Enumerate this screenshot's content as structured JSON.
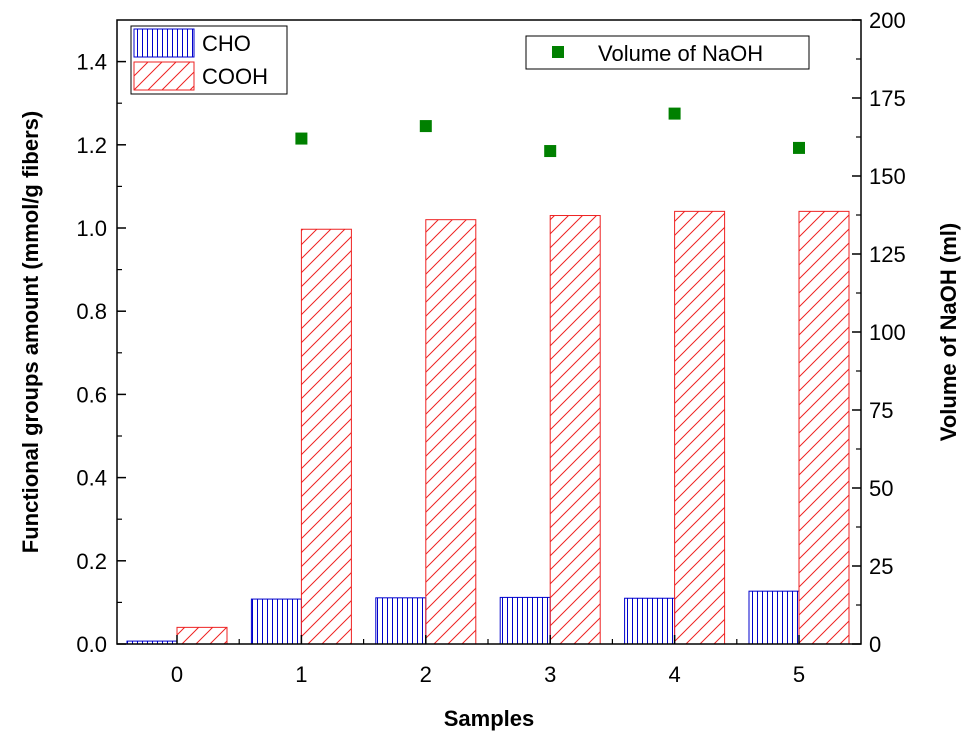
{
  "chart_data": {
    "type": "bar",
    "categories": [
      "0",
      "1",
      "2",
      "3",
      "4",
      "5"
    ],
    "xlabel": "Samples",
    "ylabel": "Functional groups amount (mmol/g fibers)",
    "ylabel_right": "Volume of NaOH (ml)",
    "ylim": [
      0,
      1.5
    ],
    "ylim_right": [
      0,
      200
    ],
    "yticks": [
      "0.0",
      "0.2",
      "0.4",
      "0.6",
      "0.8",
      "1.0",
      "1.2",
      "1.4"
    ],
    "yticks_right": [
      "0",
      "25",
      "50",
      "75",
      "100",
      "125",
      "150",
      "175",
      "200"
    ],
    "grid": false,
    "legend_placement": "top-left and top-right",
    "series": [
      {
        "name": "CHO",
        "axis": "left",
        "kind": "bar",
        "pattern": "vertical-lines",
        "color": "#0000cc",
        "values": [
          0.007,
          0.108,
          0.111,
          0.112,
          0.11,
          0.127
        ]
      },
      {
        "name": "COOH",
        "axis": "left",
        "kind": "bar",
        "pattern": "diagonal-lines",
        "color": "#ee2222",
        "values": [
          0.04,
          0.997,
          1.02,
          1.03,
          1.04,
          1.04
        ]
      },
      {
        "name": "Volume of NaOH",
        "axis": "right",
        "kind": "scatter",
        "marker": "square",
        "color": "#008000",
        "values": [
          null,
          162,
          166,
          158,
          170,
          159
        ]
      }
    ]
  }
}
